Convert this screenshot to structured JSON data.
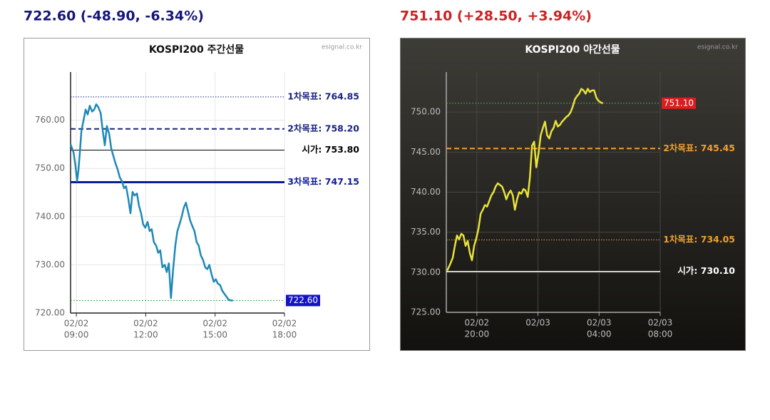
{
  "chart_data": [
    {
      "type": "line",
      "headline": "722.60 (-48.90, -6.34%)",
      "headline_color": "#16167a",
      "title": "KOSPI200 주간선물",
      "source": "esignal.co.kr",
      "color": "#1e88b8",
      "xlim": [
        8.75,
        18
      ],
      "ylim": [
        720,
        770
      ],
      "grid": true,
      "xticks": [
        {
          "value": 9,
          "label": [
            "02/02",
            "09:00"
          ]
        },
        {
          "value": 12,
          "label": [
            "02/02",
            "12:00"
          ]
        },
        {
          "value": 15,
          "label": [
            "02/02",
            "15:00"
          ]
        },
        {
          "value": 18,
          "label": [
            "02/02",
            "18:00"
          ]
        }
      ],
      "yticks": [
        {
          "value": 720,
          "label": "720.00"
        },
        {
          "value": 730,
          "label": "730.00"
        },
        {
          "value": 740,
          "label": "740.00"
        },
        {
          "value": 750,
          "label": "750.00"
        },
        {
          "value": 760,
          "label": "760.00"
        }
      ],
      "x": [
        8.75,
        8.88,
        8.97,
        9.03,
        9.09,
        9.15,
        9.22,
        9.31,
        9.4,
        9.49,
        9.58,
        9.68,
        9.77,
        9.86,
        9.95,
        10.05,
        10.14,
        10.23,
        10.32,
        10.42,
        10.51,
        10.6,
        10.69,
        10.78,
        10.88,
        10.97,
        11.06,
        11.15,
        11.25,
        11.34,
        11.43,
        11.52,
        11.62,
        11.71,
        11.8,
        11.89,
        11.98,
        12.08,
        12.17,
        12.26,
        12.35,
        12.45,
        12.54,
        12.63,
        12.72,
        12.82,
        12.91,
        13.0,
        13.09,
        13.18,
        13.28,
        13.37,
        13.46,
        13.55,
        13.65,
        13.74,
        13.83,
        13.92,
        14.02,
        14.11,
        14.2,
        14.29,
        14.38,
        14.48,
        14.57,
        14.66,
        14.75,
        14.85,
        14.94,
        15.03,
        15.12,
        15.22,
        15.31,
        15.4,
        15.49,
        15.58,
        15.68,
        15.77
      ],
      "values": [
        755.0,
        753.3,
        750.3,
        747.4,
        749.6,
        753.3,
        757.8,
        760.0,
        762.2,
        761.2,
        763.0,
        761.8,
        762.2,
        763.3,
        762.7,
        761.5,
        757.8,
        754.8,
        758.8,
        757.1,
        754.1,
        752.6,
        751.1,
        749.9,
        748.1,
        747.4,
        745.9,
        746.3,
        743.6,
        740.7,
        745.1,
        744.4,
        744.8,
        742.2,
        740.7,
        738.4,
        737.7,
        738.9,
        737.0,
        737.4,
        734.7,
        734.0,
        732.5,
        733.0,
        729.5,
        730.0,
        728.5,
        730.3,
        723.1,
        728.8,
        734.0,
        737.0,
        738.4,
        739.9,
        741.9,
        742.9,
        741.0,
        739.2,
        738.0,
        737.0,
        734.7,
        734.0,
        732.0,
        731.0,
        729.5,
        729.1,
        730.0,
        728.0,
        726.5,
        727.0,
        726.1,
        725.8,
        724.6,
        724.0,
        723.4,
        722.8,
        722.6,
        722.6
      ],
      "ref_lines": [
        {
          "label": "1차목표: 764.85",
          "value": 764.85,
          "color": "#1a237e",
          "style": "dotted",
          "width": 1
        },
        {
          "label": "2차목표: 758.20",
          "value": 758.2,
          "color": "#1a237e",
          "style": "dashed",
          "width": 2
        },
        {
          "label": "시가: 753.80",
          "value": 753.8,
          "color": "#000000",
          "style": "solid",
          "width": 1
        },
        {
          "label": "3차목표: 747.15",
          "value": 747.15,
          "color": "#0d1a9a",
          "style": "solid",
          "width": 3
        }
      ],
      "last": {
        "value": 722.6,
        "label": "722.60",
        "box_color": "#1414c4",
        "line_color": "#43a047"
      }
    },
    {
      "type": "line",
      "headline": "751.10 (+28.50, +3.94%)",
      "headline_color": "#cc2222",
      "title": "KOSPI200 야간선물",
      "source": "esignal.co.kr",
      "color": "#e8e23a",
      "xlim": [
        18,
        32
      ],
      "ylim": [
        725,
        755
      ],
      "grid": true,
      "xticks": [
        {
          "value": 20,
          "label": [
            "02/02",
            "20:00"
          ]
        },
        {
          "value": 24,
          "label": [
            "02/03"
          ]
        },
        {
          "value": 28,
          "label": [
            "02/03",
            "04:00"
          ]
        },
        {
          "value": 32,
          "label": [
            "02/03",
            "08:00"
          ]
        }
      ],
      "yticks": [
        {
          "value": 725,
          "label": "725.00"
        },
        {
          "value": 730,
          "label": "730.00"
        },
        {
          "value": 735,
          "label": "735.00"
        },
        {
          "value": 740,
          "label": "740.00"
        },
        {
          "value": 745,
          "label": "745.00"
        },
        {
          "value": 750,
          "label": "750.00"
        }
      ],
      "x": [
        18.05,
        18.23,
        18.42,
        18.56,
        18.7,
        18.84,
        18.98,
        19.12,
        19.26,
        19.4,
        19.54,
        19.68,
        19.82,
        19.96,
        20.11,
        20.25,
        20.39,
        20.53,
        20.67,
        20.81,
        20.95,
        21.09,
        21.23,
        21.37,
        21.51,
        21.65,
        21.79,
        21.93,
        22.07,
        22.21,
        22.35,
        22.49,
        22.63,
        22.77,
        22.91,
        23.05,
        23.19,
        23.33,
        23.47,
        23.61,
        23.75,
        23.89,
        24.04,
        24.18,
        24.32,
        24.46,
        24.6,
        24.74,
        24.88,
        25.02,
        25.16,
        25.3,
        25.44,
        25.58,
        25.72,
        25.86,
        26.0,
        26.14,
        26.28,
        26.42,
        26.56,
        26.7,
        26.84,
        26.98,
        27.12,
        27.26,
        27.4,
        27.54,
        27.68,
        27.82,
        27.96,
        28.11,
        28.25
      ],
      "values": [
        730.2,
        730.9,
        731.8,
        733.3,
        734.6,
        734.1,
        734.8,
        734.6,
        733.3,
        733.9,
        732.4,
        731.5,
        733.3,
        734.2,
        735.5,
        737.3,
        737.8,
        738.4,
        738.2,
        738.9,
        739.6,
        740.0,
        740.7,
        741.1,
        740.9,
        740.7,
        740.0,
        739.1,
        739.8,
        740.2,
        739.6,
        737.8,
        739.1,
        740.0,
        739.8,
        740.4,
        740.2,
        739.4,
        741.8,
        745.8,
        746.3,
        743.1,
        744.9,
        747.1,
        748.0,
        748.8,
        747.1,
        746.7,
        747.6,
        748.0,
        748.9,
        748.2,
        748.4,
        748.8,
        749.1,
        749.4,
        749.6,
        750.0,
        750.7,
        751.6,
        752.0,
        752.3,
        752.9,
        752.7,
        752.3,
        752.9,
        752.5,
        752.7,
        752.7,
        751.8,
        751.4,
        751.2,
        751.1
      ],
      "ref_lines": [
        {
          "label": "2차목표: 745.45",
          "value": 745.45,
          "color": "#f0a030",
          "style": "dashed",
          "width": 2
        },
        {
          "label": "1차목표: 734.05",
          "value": 734.05,
          "color": "#f0a030",
          "style": "dotted",
          "width": 1
        },
        {
          "label": "시가: 730.10",
          "value": 730.1,
          "color": "#ffffff",
          "style": "solid",
          "width": 1.5
        }
      ],
      "last": {
        "value": 751.1,
        "label": "751.10",
        "box_color": "#d81e1e",
        "line_color": "#43a047"
      }
    }
  ]
}
